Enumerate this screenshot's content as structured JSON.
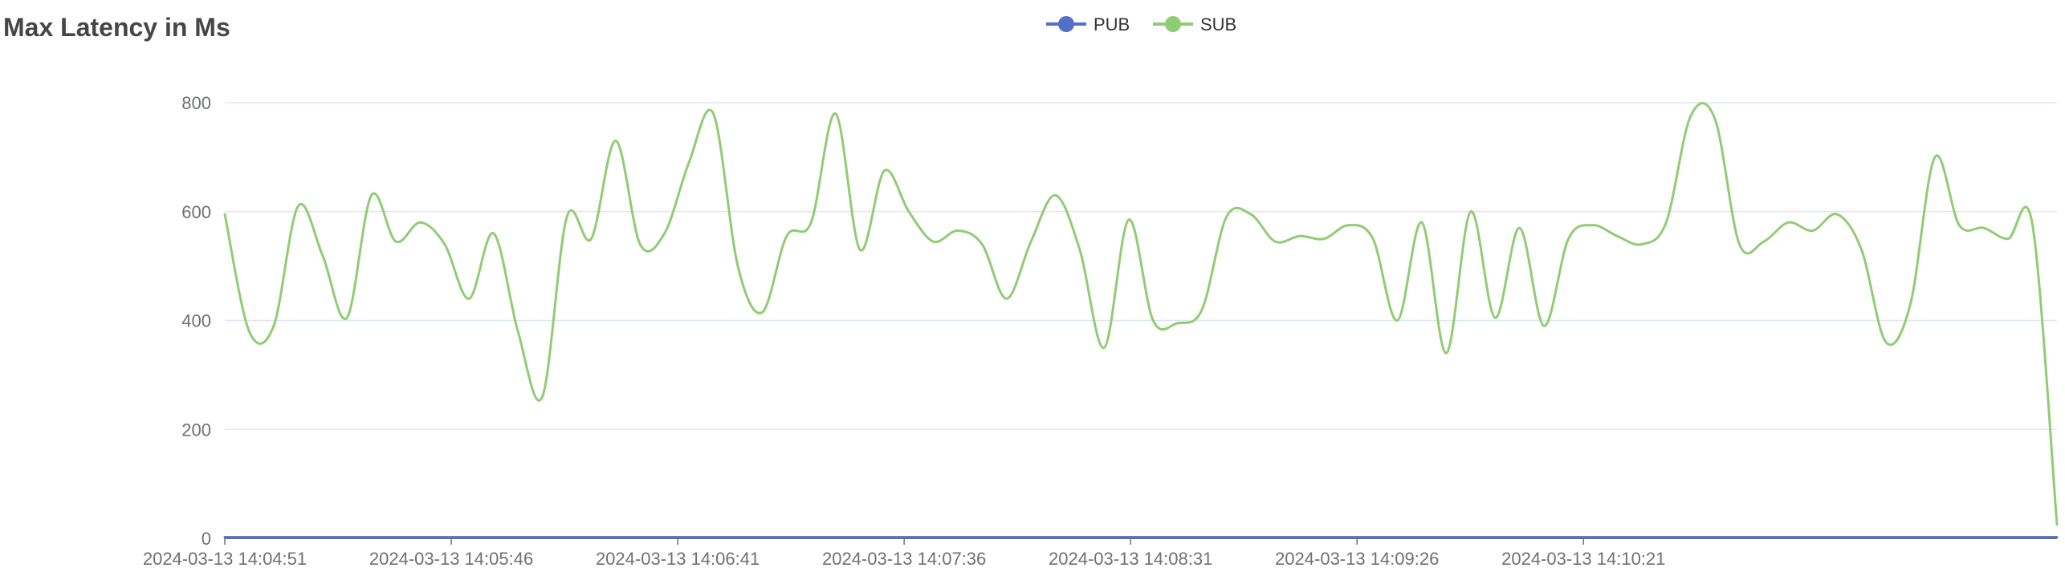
{
  "chart_data": {
    "type": "line",
    "title": "Max Latency in Ms",
    "legend_position": "top-center",
    "grid": true,
    "ylim": [
      0,
      800
    ],
    "y_ticks": [
      "0",
      "200",
      "400",
      "600",
      "800"
    ],
    "x_tick_labels": [
      "2024-03-13 14:04:51",
      "2024-03-13 14:05:46",
      "2024-03-13 14:06:41",
      "2024-03-13 14:07:36",
      "2024-03-13 14:08:31",
      "2024-03-13 14:09:26",
      "2024-03-13 14:10:21"
    ],
    "x_start": "2024-03-13 14:04:51",
    "x_step_seconds": 5,
    "series": [
      {
        "name": "PUB",
        "color": "#5470c6",
        "values": [
          2,
          2,
          2,
          2,
          2,
          2,
          2,
          2,
          2,
          2,
          2,
          2,
          2,
          2,
          2,
          2,
          2,
          2,
          2,
          2,
          2,
          2,
          2,
          2,
          2,
          2,
          2,
          2,
          2,
          2,
          2,
          2,
          2,
          2,
          2,
          2,
          2,
          2,
          2,
          2,
          2,
          2,
          2,
          2,
          2,
          2,
          2,
          2,
          2,
          2,
          2,
          2,
          2,
          2,
          2,
          2,
          2,
          2,
          2,
          2,
          2,
          2,
          2,
          2,
          2,
          2,
          2,
          2,
          2,
          2,
          2,
          2,
          2,
          2,
          2,
          2,
          2,
          2,
          2,
          2,
          2,
          2,
          2,
          2,
          2,
          2,
          2,
          2,
          2,
          2
        ]
      },
      {
        "name": "SUB",
        "color": "#91cc75",
        "values": [
          595,
          380,
          390,
          610,
          520,
          405,
          630,
          545,
          580,
          540,
          440,
          560,
          380,
          260,
          590,
          550,
          730,
          540,
          560,
          690,
          780,
          500,
          415,
          555,
          580,
          780,
          530,
          675,
          600,
          545,
          565,
          540,
          440,
          545,
          630,
          530,
          350,
          585,
          400,
          395,
          420,
          590,
          595,
          545,
          555,
          550,
          575,
          550,
          400,
          580,
          340,
          600,
          405,
          570,
          390,
          550,
          575,
          555,
          540,
          580,
          775,
          770,
          540,
          545,
          580,
          565,
          595,
          530,
          360,
          430,
          700,
          575,
          570,
          550,
          575,
          25
        ]
      }
    ]
  }
}
